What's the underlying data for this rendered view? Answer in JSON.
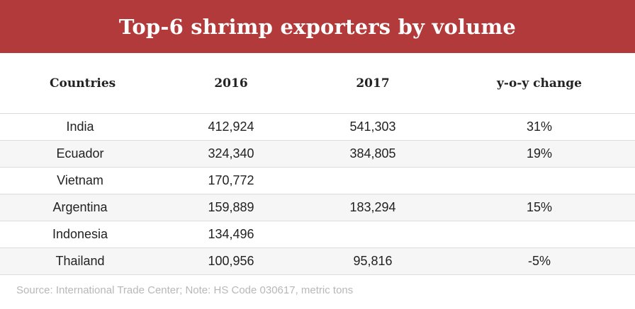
{
  "title": "Top-6 shrimp exporters by volume",
  "chart_data": {
    "type": "table",
    "title": "Top-6 shrimp exporters by volume",
    "columns": [
      "Countries",
      "2016",
      "2017",
      "y-o-y change"
    ],
    "rows": [
      {
        "country": "India",
        "y2016": "412,924",
        "y2017": "541,303",
        "change": "31%"
      },
      {
        "country": "Ecuador",
        "y2016": "324,340",
        "y2017": "384,805",
        "change": "19%"
      },
      {
        "country": "Vietnam",
        "y2016": "170,772",
        "y2017": "",
        "change": ""
      },
      {
        "country": "Argentina",
        "y2016": "159,889",
        "y2017": "183,294",
        "change": "15%"
      },
      {
        "country": "Indonesia",
        "y2016": "134,496",
        "y2017": "",
        "change": ""
      },
      {
        "country": "Thailand",
        "y2016": "100,956",
        "y2017": "95,816",
        "change": "-5%"
      }
    ],
    "source": "Source: International Trade Center; Note: HS Code 030617, metric tons"
  },
  "colors": {
    "banner": "#b23a3a",
    "row_alt": "#f6f6f6",
    "source_text": "#b8b8b8"
  }
}
